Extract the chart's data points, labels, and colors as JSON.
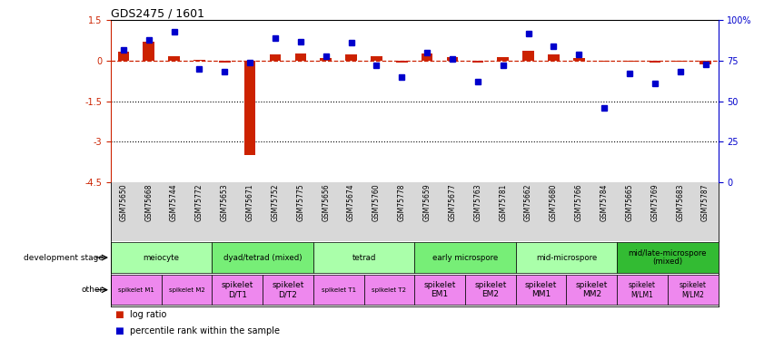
{
  "title": "GDS2475 / 1601",
  "samples": [
    "GSM75650",
    "GSM75668",
    "GSM75744",
    "GSM75772",
    "GSM75653",
    "GSM75671",
    "GSM75752",
    "GSM75775",
    "GSM75656",
    "GSM75674",
    "GSM75760",
    "GSM75778",
    "GSM75659",
    "GSM75677",
    "GSM75763",
    "GSM75781",
    "GSM75662",
    "GSM75680",
    "GSM75766",
    "GSM75784",
    "GSM75665",
    "GSM75769",
    "GSM75683",
    "GSM75787"
  ],
  "log_ratio": [
    0.35,
    0.72,
    0.18,
    0.04,
    -0.08,
    -3.5,
    0.25,
    0.28,
    0.1,
    0.22,
    0.17,
    -0.05,
    0.27,
    0.12,
    -0.08,
    0.14,
    0.38,
    0.24,
    0.1,
    -0.04,
    -0.04,
    -0.08,
    -0.04,
    -0.12
  ],
  "percentile": [
    82,
    88,
    93,
    70,
    68,
    74,
    89,
    87,
    78,
    86,
    72,
    65,
    80,
    76,
    62,
    72,
    92,
    84,
    79,
    46,
    67,
    61,
    68,
    73
  ],
  "ylim_left": [
    -4.5,
    1.5
  ],
  "ylim_right": [
    0,
    100
  ],
  "yticks_left": [
    1.5,
    0.0,
    -1.5,
    -3.0,
    -4.5
  ],
  "ytick_labels_left": [
    "1.5",
    "0",
    "-1.5",
    "-3",
    "-4.5"
  ],
  "yticks_right": [
    100,
    75,
    50,
    25,
    0
  ],
  "ytick_labels_right": [
    "100%",
    "75",
    "50",
    "25",
    "0"
  ],
  "hlines": [
    -1.5,
    -3.0
  ],
  "log_ratio_color": "#cc2200",
  "percentile_color": "#0000cc",
  "development_stages": [
    {
      "label": "meiocyte",
      "start": 0,
      "end": 4,
      "color": "#aaffaa"
    },
    {
      "label": "dyad/tetrad (mixed)",
      "start": 4,
      "end": 8,
      "color": "#77ee77"
    },
    {
      "label": "tetrad",
      "start": 8,
      "end": 12,
      "color": "#aaffaa"
    },
    {
      "label": "early microspore",
      "start": 12,
      "end": 16,
      "color": "#77ee77"
    },
    {
      "label": "mid-microspore",
      "start": 16,
      "end": 20,
      "color": "#aaffaa"
    },
    {
      "label": "mid/late-microspore\n(mixed)",
      "start": 20,
      "end": 24,
      "color": "#33bb33"
    }
  ],
  "other_labels": [
    {
      "label": "spikelet M1",
      "start": 0,
      "end": 2,
      "fontsize": 5.0
    },
    {
      "label": "spikelet M2",
      "start": 2,
      "end": 4,
      "fontsize": 5.0
    },
    {
      "label": "spikelet\nD/T1",
      "start": 4,
      "end": 6,
      "fontsize": 6.5
    },
    {
      "label": "spikelet\nD/T2",
      "start": 6,
      "end": 8,
      "fontsize": 6.5
    },
    {
      "label": "spikelet T1",
      "start": 8,
      "end": 10,
      "fontsize": 5.0
    },
    {
      "label": "spikelet T2",
      "start": 10,
      "end": 12,
      "fontsize": 5.0
    },
    {
      "label": "spikelet\nEM1",
      "start": 12,
      "end": 14,
      "fontsize": 6.5
    },
    {
      "label": "spikelet\nEM2",
      "start": 14,
      "end": 16,
      "fontsize": 6.5
    },
    {
      "label": "spikelet\nMM1",
      "start": 16,
      "end": 18,
      "fontsize": 6.5
    },
    {
      "label": "spikelet\nMM2",
      "start": 18,
      "end": 20,
      "fontsize": 6.5
    },
    {
      "label": "spikelet\nM/LM1",
      "start": 20,
      "end": 22,
      "fontsize": 5.5
    },
    {
      "label": "spikelet\nM/LM2",
      "start": 22,
      "end": 24,
      "fontsize": 5.5
    }
  ],
  "other_color": "#ee88ee",
  "legend_items": [
    {
      "label": "log ratio",
      "color": "#cc2200"
    },
    {
      "label": "percentile rank within the sample",
      "color": "#0000cc"
    }
  ],
  "fig_width": 8.41,
  "fig_height": 3.75,
  "fig_dpi": 100,
  "xlbl_bg": "#d8d8d8"
}
